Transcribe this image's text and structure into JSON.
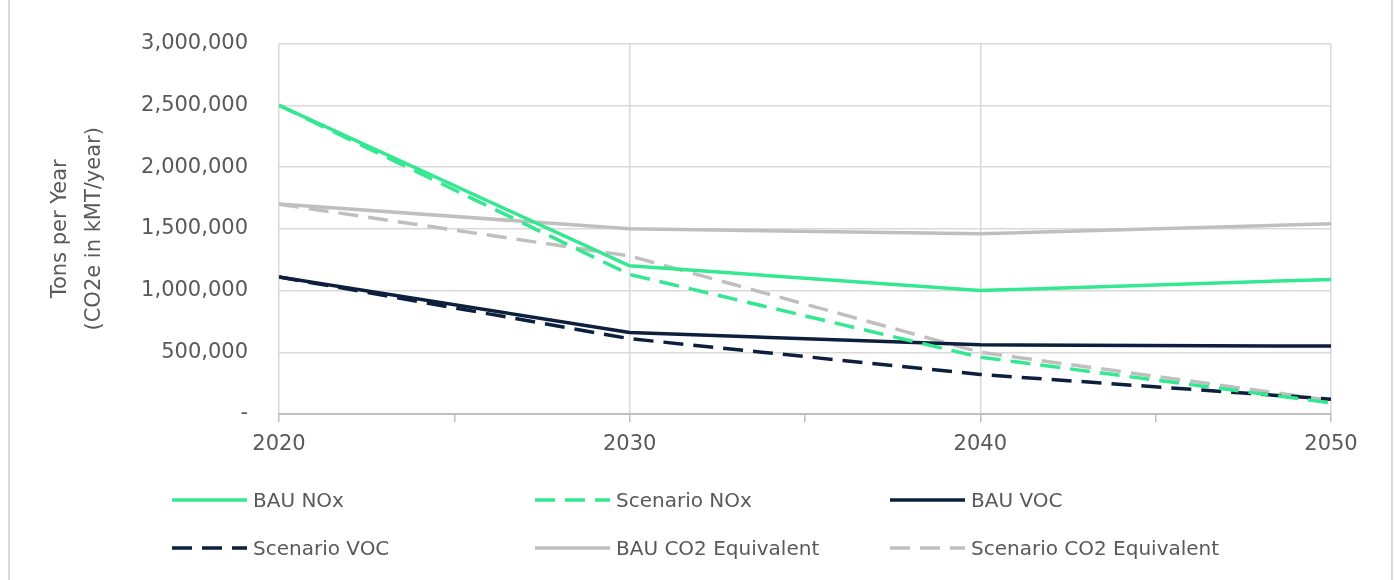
{
  "chart_data": {
    "type": "line",
    "ylabel": "Tons per Year\n(CO2e in kMT/year)",
    "x": [
      2020,
      2030,
      2040,
      2050
    ],
    "series": [
      {
        "name": "BAU NOx",
        "color": "#33e891",
        "line_style": "solid",
        "values": [
          2500000,
          1200000,
          1000000,
          1090000
        ]
      },
      {
        "name": "Scenario NOx",
        "color": "#33e891",
        "line_style": "dashed",
        "values": [
          2500000,
          1130000,
          460000,
          90000
        ]
      },
      {
        "name": "BAU VOC",
        "color": "#0c1f3d",
        "line_style": "solid",
        "values": [
          1110000,
          660000,
          560000,
          550000
        ]
      },
      {
        "name": "Scenario VOC",
        "color": "#0c1f3d",
        "line_style": "dashed",
        "values": [
          1110000,
          610000,
          320000,
          120000
        ]
      },
      {
        "name": "BAU CO2 Equivalent",
        "color": "#bfbfbf",
        "line_style": "solid",
        "values": [
          1700000,
          1500000,
          1460000,
          1540000
        ]
      },
      {
        "name": "Scenario CO2 Equivalent",
        "color": "#bfbfbf",
        "line_style": "dashed",
        "values": [
          1700000,
          1280000,
          500000,
          110000
        ]
      }
    ],
    "xlim": [
      2020,
      2050
    ],
    "xticks": [
      2020,
      {
        "value": 2025,
        "label": null
      },
      2030,
      {
        "value": 2035,
        "label": null
      },
      2040,
      {
        "value": 2045,
        "label": null
      },
      2050
    ],
    "ylim": [
      0,
      3000000
    ],
    "yticks": [
      {
        "value": 0,
        "label": "-"
      },
      {
        "value": 500000,
        "label": "500,000"
      },
      {
        "value": 1000000,
        "label": "1,000,000"
      },
      {
        "value": 1500000,
        "label": "1,500,000"
      },
      {
        "value": 2000000,
        "label": "2,000,000"
      },
      {
        "value": 2500000,
        "label": "2,500,000"
      },
      {
        "value": 3000000,
        "label": "3,000,000"
      }
    ],
    "grid": true,
    "legend": "bottom",
    "marker": "none"
  }
}
